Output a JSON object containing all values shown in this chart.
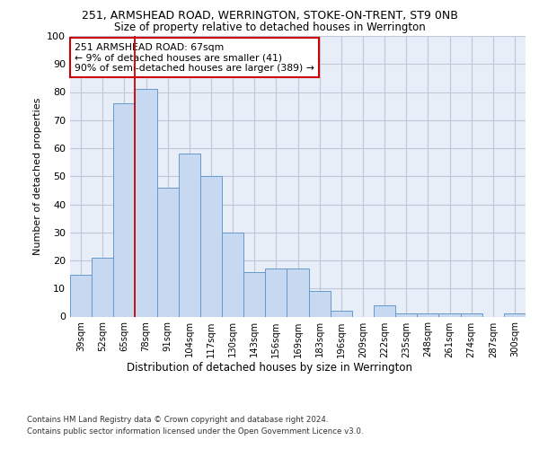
{
  "title1": "251, ARMSHEAD ROAD, WERRINGTON, STOKE-ON-TRENT, ST9 0NB",
  "title2": "Size of property relative to detached houses in Werrington",
  "xlabel": "Distribution of detached houses by size in Werrington",
  "ylabel": "Number of detached properties",
  "categories": [
    "39sqm",
    "52sqm",
    "65sqm",
    "78sqm",
    "91sqm",
    "104sqm",
    "117sqm",
    "130sqm",
    "143sqm",
    "156sqm",
    "169sqm",
    "183sqm",
    "196sqm",
    "209sqm",
    "222sqm",
    "235sqm",
    "248sqm",
    "261sqm",
    "274sqm",
    "287sqm",
    "300sqm"
  ],
  "values": [
    15,
    21,
    76,
    81,
    46,
    58,
    50,
    30,
    16,
    17,
    17,
    9,
    2,
    0,
    4,
    1,
    1,
    1,
    1,
    0,
    1
  ],
  "bar_color": "#c6d9f0",
  "bar_edge_color": "#6699cc",
  "vline_index": 2,
  "vline_color": "#cc0000",
  "annotation_text": "251 ARMSHEAD ROAD: 67sqm\n← 9% of detached houses are smaller (41)\n90% of semi-detached houses are larger (389) →",
  "annotation_box_color": "#ffffff",
  "annotation_box_edge": "#cc0000",
  "grid_color": "#c0c8d8",
  "bg_color": "#e8eef8",
  "ylim": [
    0,
    100
  ],
  "yticks": [
    0,
    10,
    20,
    30,
    40,
    50,
    60,
    70,
    80,
    90,
    100
  ],
  "footer1": "Contains HM Land Registry data © Crown copyright and database right 2024.",
  "footer2": "Contains public sector information licensed under the Open Government Licence v3.0."
}
